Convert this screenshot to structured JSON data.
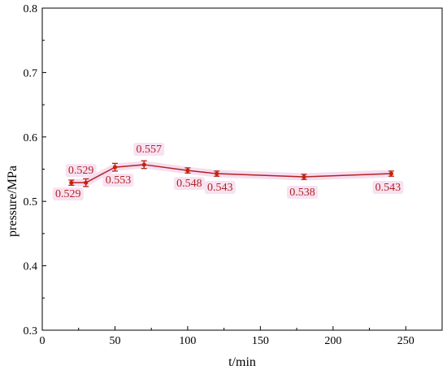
{
  "chart_data": {
    "type": "line",
    "title": "",
    "xlabel": "t/min",
    "ylabel": "pressure/MPa",
    "xlim": [
      0,
      275
    ],
    "ylim": [
      0.3,
      0.8
    ],
    "xticks": [
      0,
      50,
      100,
      150,
      200,
      250
    ],
    "yticks": [
      0.3,
      0.4,
      0.5,
      0.6,
      0.7,
      0.8
    ],
    "grid": false,
    "legend": "none",
    "series": [
      {
        "x": [
          20,
          30,
          50,
          70,
          100,
          120,
          180,
          240
        ],
        "y": [
          0.529,
          0.529,
          0.553,
          0.557,
          0.548,
          0.543,
          0.538,
          0.543
        ],
        "error": [
          0.004,
          0.006,
          0.006,
          0.006,
          0.004,
          0.004,
          0.004,
          0.004
        ],
        "labels": [
          "0.529",
          "0.529",
          "0.553",
          "0.557",
          "0.548",
          "0.543",
          "0.538",
          "0.543"
        ],
        "color": "#b22222",
        "marker_color": "#cc2200",
        "label_color": "#b22222",
        "label_bg": "#f6ddf0"
      }
    ]
  }
}
